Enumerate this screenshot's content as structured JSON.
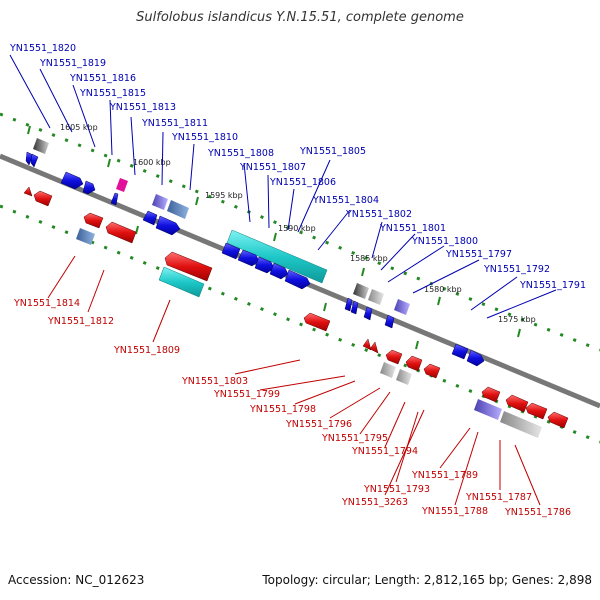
{
  "title": "Sulfolobus islandicus Y.N.15.51, complete genome",
  "footer": {
    "accession": "Accession: NC_012623",
    "topology": "Topology: circular; Length: 2,812,165 bp; Genes: 2,898"
  },
  "colors": {
    "backbone": "#777777",
    "forward_gene": "#1010e0",
    "reverse_gene": "#e01010",
    "forward_label": "#0000b0",
    "reverse_label": "#c00000",
    "dotted_track": "#228822",
    "cyan_feature": "#1ec8c8",
    "gray_feature": "#a9a9a9",
    "purple_feature": "#7a6fd6",
    "magenta_feature": "#e0109a",
    "steelblue_feature": "#4a7ab0"
  },
  "position_markers": [
    "1605 kbp",
    "1600 kbp",
    "1595 kbp",
    "1590 kbp",
    "1585 kbp",
    "1580 kbp",
    "1575 kbp"
  ],
  "forward_genes": [
    "YN1551_1820",
    "YN1551_1819",
    "YN1551_1816",
    "YN1551_1815",
    "YN1551_1813",
    "YN1551_1811",
    "YN1551_1810",
    "YN1551_1808",
    "YN1551_1807",
    "YN1551_1806",
    "YN1551_1805",
    "YN1551_1804",
    "YN1551_1802",
    "YN1551_1801",
    "YN1551_1800",
    "YN1551_1797",
    "YN1551_1792",
    "YN1551_1791"
  ],
  "reverse_genes": [
    "YN1551_1814",
    "YN1551_1812",
    "YN1551_1809",
    "YN1551_1803",
    "YN1551_1799",
    "YN1551_1798",
    "YN1551_1796",
    "YN1551_1795",
    "YN1551_1794",
    "YN1551_1793",
    "YN1551_3263",
    "YN1551_1789",
    "YN1551_1788",
    "YN1551_1787",
    "YN1551_1786"
  ]
}
